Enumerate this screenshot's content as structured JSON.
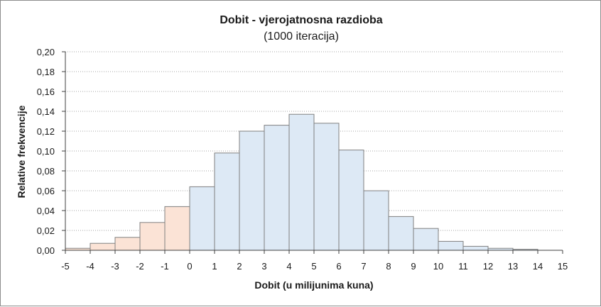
{
  "chart_data": {
    "type": "bar",
    "title": "Dobit - vjerojatnosna razdioba",
    "subtitle": "(1000 iteracija)",
    "xlabel": "Dobit (u milijunima kuna)",
    "ylabel": "Relative frekvencije",
    "xlim": [
      -5,
      15
    ],
    "ylim": [
      0,
      0.2
    ],
    "x_ticks": [
      "-5",
      "-4",
      "-3",
      "-2",
      "-1",
      "0",
      "1",
      "2",
      "3",
      "4",
      "5",
      "6",
      "7",
      "8",
      "9",
      "10",
      "11",
      "12",
      "13",
      "14",
      "15"
    ],
    "y_ticks": [
      "0,00",
      "0,02",
      "0,04",
      "0,06",
      "0,08",
      "0,10",
      "0,12",
      "0,14",
      "0,16",
      "0,18",
      "0,20"
    ],
    "grid": "horizontal dotted",
    "legend": "none",
    "bins": [
      {
        "from": -5,
        "to": -4,
        "value": 0.002
      },
      {
        "from": -4,
        "to": -3,
        "value": 0.007
      },
      {
        "from": -3,
        "to": -2,
        "value": 0.013
      },
      {
        "from": -2,
        "to": -1,
        "value": 0.028
      },
      {
        "from": -1,
        "to": 0,
        "value": 0.044
      },
      {
        "from": 0,
        "to": 1,
        "value": 0.064
      },
      {
        "from": 1,
        "to": 2,
        "value": 0.098
      },
      {
        "from": 2,
        "to": 3,
        "value": 0.12
      },
      {
        "from": 3,
        "to": 4,
        "value": 0.126
      },
      {
        "from": 4,
        "to": 5,
        "value": 0.137
      },
      {
        "from": 5,
        "to": 6,
        "value": 0.128
      },
      {
        "from": 6,
        "to": 7,
        "value": 0.101
      },
      {
        "from": 7,
        "to": 8,
        "value": 0.06
      },
      {
        "from": 8,
        "to": 9,
        "value": 0.034
      },
      {
        "from": 9,
        "to": 10,
        "value": 0.022
      },
      {
        "from": 10,
        "to": 11,
        "value": 0.009
      },
      {
        "from": 11,
        "to": 12,
        "value": 0.004
      },
      {
        "from": 12,
        "to": 13,
        "value": 0.002
      },
      {
        "from": 13,
        "to": 14,
        "value": 0.001
      },
      {
        "from": 14,
        "to": 15,
        "value": 0.0
      }
    ],
    "colors": {
      "negative_fill": "#fbe3d6",
      "positive_fill": "#dde9f5",
      "bar_stroke": "#808080",
      "grid": "#a6a6a6",
      "axis": "#404040"
    }
  }
}
